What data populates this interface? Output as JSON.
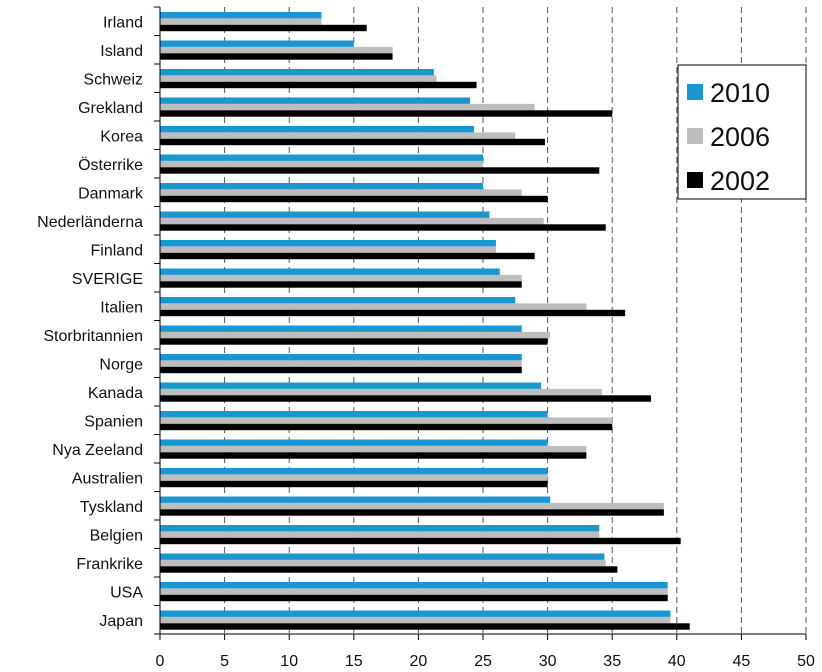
{
  "chart_data": {
    "type": "bar",
    "orientation": "horizontal",
    "categories": [
      "Irland",
      "Island",
      "Schweiz",
      "Grekland",
      "Korea",
      "Österrike",
      "Danmark",
      "Nederländerna",
      "Finland",
      "SVERIGE",
      "Italien",
      "Storbritannien",
      "Norge",
      "Kanada",
      "Spanien",
      "Nya Zeeland",
      "Australien",
      "Tyskland",
      "Belgien",
      "Frankrike",
      "USA",
      "Japan"
    ],
    "series": [
      {
        "name": "2010",
        "color": "#1a96d0",
        "values": [
          12.5,
          15.0,
          21.2,
          24.0,
          24.3,
          25.0,
          25.0,
          25.5,
          26.0,
          26.3,
          27.5,
          28.0,
          28.0,
          29.5,
          30.0,
          30.0,
          30.0,
          30.2,
          34.0,
          34.4,
          39.3,
          39.5
        ]
      },
      {
        "name": "2006",
        "color": "#bdbdbd",
        "values": [
          12.5,
          18.0,
          21.4,
          29.0,
          27.5,
          25.0,
          28.0,
          29.7,
          26.0,
          28.0,
          33.0,
          30.2,
          28.0,
          34.2,
          35.0,
          33.0,
          30.0,
          39.0,
          34.0,
          34.5,
          39.3,
          39.5
        ]
      },
      {
        "name": "2002",
        "color": "#000000",
        "values": [
          16.0,
          18.0,
          24.5,
          35.0,
          29.8,
          34.0,
          30.0,
          34.5,
          29.0,
          28.0,
          36.0,
          30.0,
          28.0,
          38.0,
          35.0,
          33.0,
          30.0,
          39.0,
          40.3,
          35.4,
          39.3,
          41.0
        ]
      }
    ],
    "xlim": [
      0,
      50
    ],
    "xticks": [
      "0",
      "5",
      "10",
      "15",
      "20",
      "25",
      "30",
      "35",
      "40",
      "45",
      "50"
    ],
    "grid": "vertical-dashed",
    "legend_position": "right"
  }
}
